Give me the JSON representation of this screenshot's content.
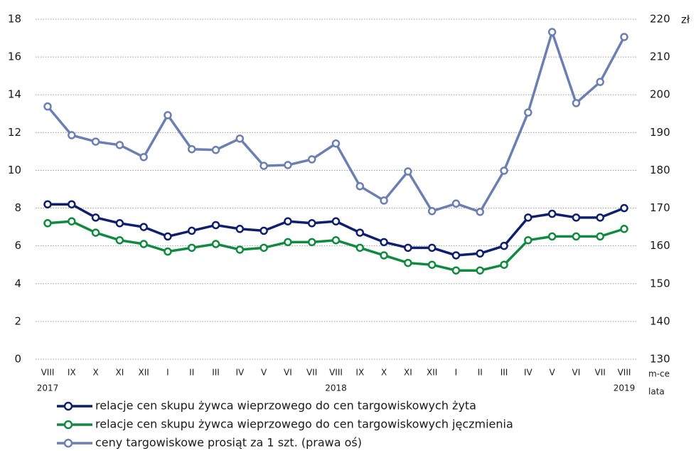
{
  "chart_data": {
    "type": "line",
    "categories": [
      "VIII",
      "IX",
      "X",
      "XI",
      "XII",
      "I",
      "II",
      "III",
      "IV",
      "V",
      "VI",
      "VII",
      "VIII",
      "IX",
      "X",
      "XI",
      "XII",
      "I",
      "II",
      "III",
      "IV",
      "V",
      "VI",
      "VII",
      "VIII"
    ],
    "category_years": [
      "2017",
      null,
      null,
      null,
      null,
      null,
      null,
      null,
      null,
      null,
      null,
      null,
      "2018",
      null,
      null,
      null,
      null,
      null,
      null,
      null,
      null,
      null,
      null,
      null,
      "2019"
    ],
    "x_axis_label": "m-ce",
    "x_axis_label_2": "lata",
    "y2_axis_label": "zł",
    "ylim": [
      0,
      18
    ],
    "yticks": [
      0,
      2,
      4,
      6,
      8,
      10,
      12,
      14,
      16,
      18
    ],
    "y2lim": [
      130,
      220
    ],
    "y2ticks": [
      130,
      140,
      150,
      160,
      170,
      180,
      190,
      200,
      210,
      220
    ],
    "grid": true,
    "legend": "bottom-left",
    "series": [
      {
        "name": "relacje cen skupu żywca wieprzowego do cen targowiskowych żyta",
        "color": "#0d1f6e",
        "values": [
          8.2,
          8.2,
          7.5,
          7.2,
          7.0,
          6.5,
          6.8,
          7.1,
          6.9,
          6.8,
          7.3,
          7.2,
          7.3,
          6.7,
          6.2,
          5.9,
          5.9,
          5.5,
          5.6,
          6.0,
          7.5,
          7.7,
          7.5,
          7.5,
          8.0
        ]
      },
      {
        "name": "relacje cen skupu żywca wieprzowego do cen targowiskowych jęczmienia",
        "color": "#0f8a3e",
        "values": [
          7.2,
          7.3,
          6.7,
          6.3,
          6.1,
          5.7,
          5.9,
          6.1,
          5.8,
          5.9,
          6.2,
          6.2,
          6.3,
          5.9,
          5.5,
          5.1,
          5.0,
          4.7,
          4.7,
          5.0,
          6.3,
          6.5,
          6.5,
          6.5,
          6.9
        ]
      },
      {
        "name": "ceny targowiskowe prosiąt za 1 szt. (prawa oś)",
        "color": "#6b7fb3",
        "axis": "y2",
        "values": [
          196.9,
          189.3,
          187.6,
          186.7,
          183.5,
          194.6,
          185.6,
          185.4,
          188.4,
          181.2,
          181.4,
          182.9,
          187.1,
          175.8,
          172.0,
          179.7,
          169.2,
          171.2,
          169.0,
          179.9,
          195.3,
          216.6,
          197.8,
          203.4,
          215.3
        ]
      }
    ]
  }
}
